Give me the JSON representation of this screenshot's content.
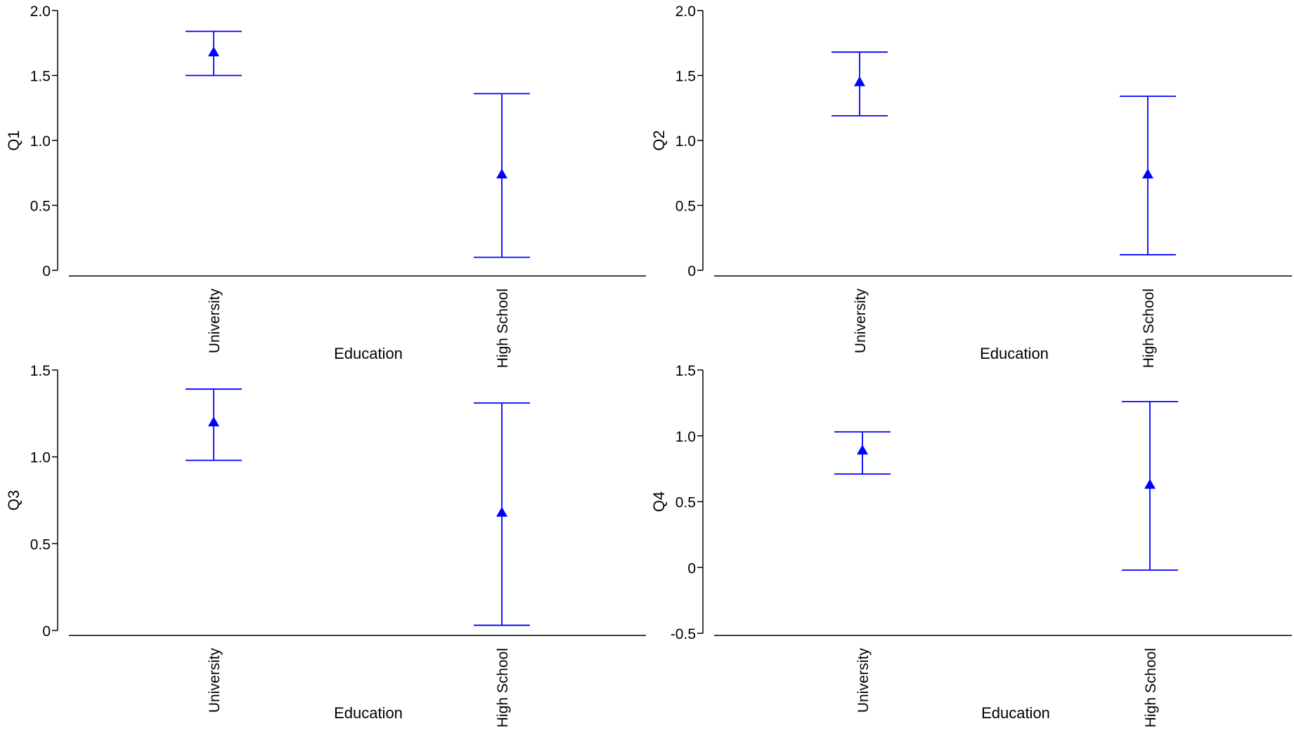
{
  "figure": {
    "xlabel": "Education"
  },
  "style": {
    "series_color": "#0000ff",
    "axis_color": "#000000"
  },
  "chart_data": [
    {
      "type": "errorbar",
      "ylabel": "Q1",
      "xlabel": "Education",
      "categories": [
        "University",
        "High School"
      ],
      "means": [
        1.68,
        0.74
      ],
      "lower": [
        1.5,
        0.1
      ],
      "upper": [
        1.84,
        1.36
      ],
      "ylim": [
        0,
        2.0
      ],
      "yticks": [
        0,
        0.5,
        1.0,
        1.5,
        2.0
      ],
      "ytick_labels": [
        "0",
        "0.5",
        "1.0",
        "1.5",
        "2.0"
      ],
      "grid": false,
      "marker": "triangle"
    },
    {
      "type": "errorbar",
      "ylabel": "Q2",
      "xlabel": "Education",
      "categories": [
        "University",
        "High School"
      ],
      "means": [
        1.45,
        0.74
      ],
      "lower": [
        1.19,
        0.12
      ],
      "upper": [
        1.68,
        1.34
      ],
      "ylim": [
        0,
        2.0
      ],
      "yticks": [
        0,
        0.5,
        1.0,
        1.5,
        2.0
      ],
      "ytick_labels": [
        "0",
        "0.5",
        "1.0",
        "1.5",
        "2.0"
      ],
      "grid": false,
      "marker": "triangle"
    },
    {
      "type": "errorbar",
      "ylabel": "Q3",
      "xlabel": "Education",
      "categories": [
        "University",
        "High School"
      ],
      "means": [
        1.2,
        0.68
      ],
      "lower": [
        0.98,
        0.03
      ],
      "upper": [
        1.39,
        1.31
      ],
      "ylim": [
        0,
        1.5
      ],
      "yticks": [
        0,
        0.5,
        1.0,
        1.5
      ],
      "ytick_labels": [
        "0",
        "0.5",
        "1.0",
        "1.5"
      ],
      "grid": false,
      "marker": "triangle"
    },
    {
      "type": "errorbar",
      "ylabel": "Q4",
      "xlabel": "Education",
      "categories": [
        "University",
        "High School"
      ],
      "means": [
        0.89,
        0.63
      ],
      "lower": [
        0.71,
        -0.02
      ],
      "upper": [
        1.03,
        1.26
      ],
      "ylim": [
        -0.5,
        1.5
      ],
      "yticks": [
        -0.5,
        0,
        0.5,
        1.0,
        1.5
      ],
      "ytick_labels": [
        "-0.5",
        "0",
        "0.5",
        "1.0",
        "1.5"
      ],
      "grid": false,
      "marker": "triangle"
    }
  ]
}
